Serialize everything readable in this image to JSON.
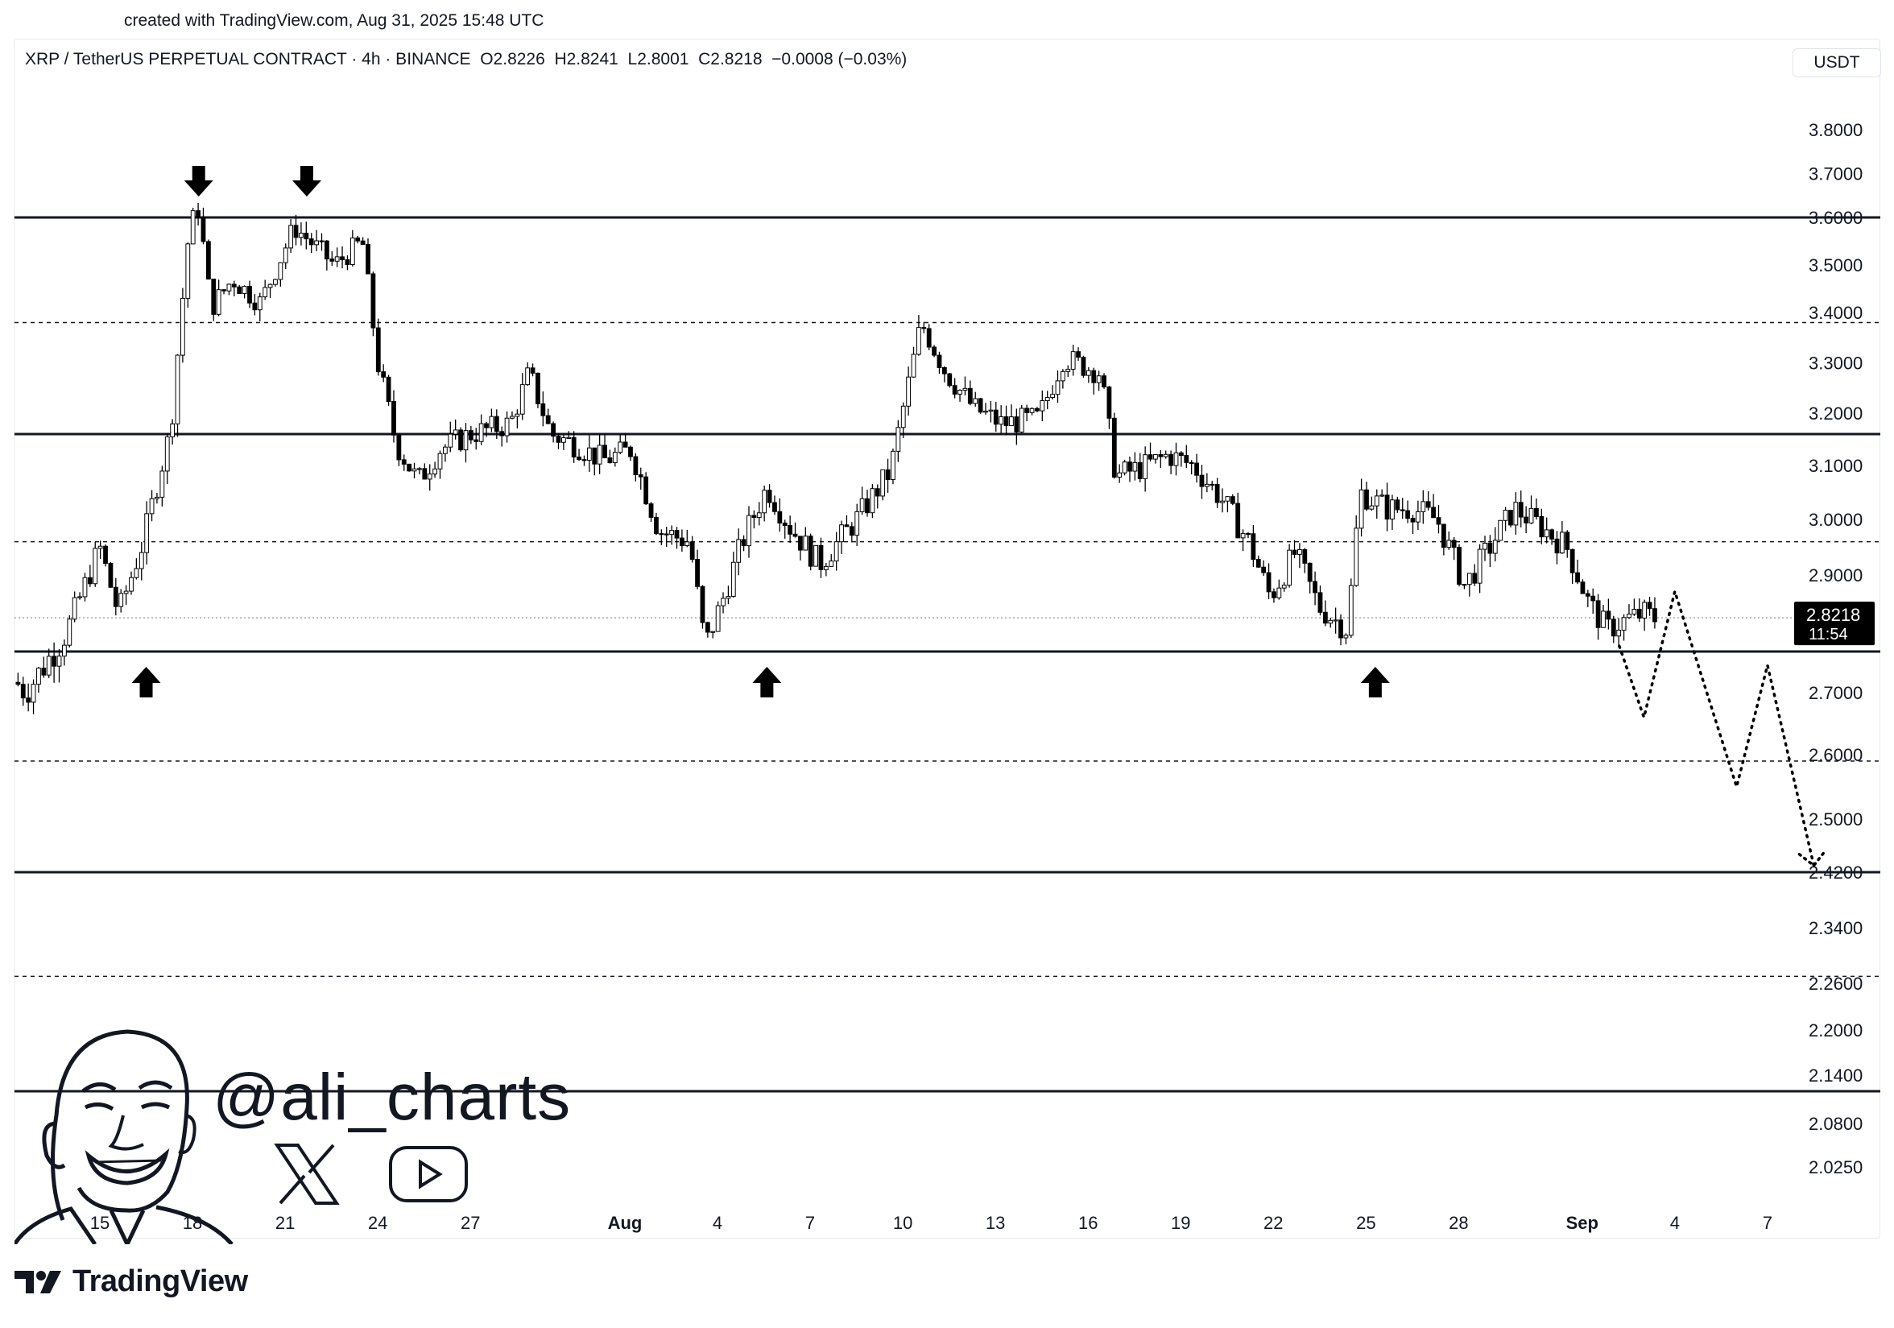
{
  "credit": "created with TradingView.com, Aug 31, 2025 15:48 UTC",
  "header": {
    "symbol": "XRP / TetherUS PERPETUAL CONTRACT · 4h · BINANCE",
    "ohlc": "O2.8226  H2.8241  L2.8001  C2.8218  −0.0008 (−0.03%)"
  },
  "currency": "USDT",
  "brand": "TradingView",
  "watermark": "@ali_charts",
  "icons": [
    "x-logo-icon",
    "youtube-play-icon",
    "tradingview-logo-icon",
    "avatar-caricature"
  ],
  "colors": {
    "candle": "#000000",
    "background": "#ffffff",
    "price_tag": "#000000"
  },
  "chart_data": {
    "type": "candlestick",
    "title": "",
    "xlabel": "",
    "ylabel": "",
    "ylim": [
      1.98,
      3.86
    ],
    "yticks": [
      3.8,
      3.7,
      3.6,
      3.5,
      3.4,
      3.3,
      3.2,
      3.1,
      3.0,
      2.9,
      2.7,
      2.6,
      2.5,
      2.42,
      2.34,
      2.26,
      2.2,
      2.14,
      2.08,
      2.025
    ],
    "ytick_labels": [
      "3.8000",
      "3.7000",
      "3.6000",
      "3.5000",
      "3.4000",
      "3.3000",
      "3.2000",
      "3.1000",
      "3.0000",
      "2.9000",
      "2.7000",
      "2.6000",
      "2.5000",
      "2.4200",
      "2.3400",
      "2.2600",
      "2.2000",
      "2.1400",
      "2.0800",
      "2.0250"
    ],
    "x_ticks": [
      {
        "label": "15",
        "day": 0
      },
      {
        "label": "18",
        "day": 3
      },
      {
        "label": "21",
        "day": 6
      },
      {
        "label": "24",
        "day": 9
      },
      {
        "label": "27",
        "day": 12
      },
      {
        "label": "Aug",
        "day": 17,
        "bold": true
      },
      {
        "label": "4",
        "day": 20
      },
      {
        "label": "7",
        "day": 23
      },
      {
        "label": "10",
        "day": 26
      },
      {
        "label": "13",
        "day": 29
      },
      {
        "label": "16",
        "day": 32
      },
      {
        "label": "19",
        "day": 35
      },
      {
        "label": "22",
        "day": 38
      },
      {
        "label": "25",
        "day": 41
      },
      {
        "label": "28",
        "day": 44
      },
      {
        "label": "Sep",
        "day": 48,
        "bold": true
      },
      {
        "label": "4",
        "day": 51
      },
      {
        "label": "7",
        "day": 54
      }
    ],
    "current_price": {
      "value": 2.8218,
      "label": "2.8218",
      "countdown": "11:54"
    },
    "support_resistance_solid": [
      3.6,
      3.16,
      2.76,
      2.42,
      2.12
    ],
    "support_resistance_dashed": [
      3.38,
      2.96,
      2.59,
      2.27
    ],
    "markers": [
      {
        "type": "down-arrow",
        "day": 3.2
      },
      {
        "type": "down-arrow",
        "day": 6.7
      },
      {
        "type": "up-arrow",
        "day": 1.5
      },
      {
        "type": "up-arrow",
        "day": 21.6
      },
      {
        "type": "up-arrow",
        "day": 41.3
      }
    ],
    "projection": [
      [
        49.2,
        2.77
      ],
      [
        50.0,
        2.66
      ],
      [
        51.0,
        2.87
      ],
      [
        53.0,
        2.55
      ],
      [
        54.0,
        2.74
      ],
      [
        55.5,
        2.43
      ]
    ],
    "anchors": [
      [
        -2.8,
        2.72
      ],
      [
        -2.4,
        2.7
      ],
      [
        -1.2,
        2.78
      ],
      [
        0.0,
        2.95
      ],
      [
        0.6,
        2.83
      ],
      [
        1.4,
        2.96
      ],
      [
        2.3,
        3.17
      ],
      [
        2.9,
        3.58
      ],
      [
        3.2,
        3.62
      ],
      [
        3.6,
        3.41
      ],
      [
        4.3,
        3.47
      ],
      [
        5.2,
        3.42
      ],
      [
        6.3,
        3.58
      ],
      [
        6.8,
        3.55
      ],
      [
        7.6,
        3.5
      ],
      [
        8.5,
        3.55
      ],
      [
        9.0,
        3.3
      ],
      [
        9.6,
        3.14
      ],
      [
        10.3,
        3.07
      ],
      [
        11.0,
        3.13
      ],
      [
        12.0,
        3.16
      ],
      [
        13.3,
        3.18
      ],
      [
        13.9,
        3.28
      ],
      [
        14.6,
        3.16
      ],
      [
        15.4,
        3.14
      ],
      [
        16.3,
        3.11
      ],
      [
        17.2,
        3.13
      ],
      [
        18.1,
        2.98
      ],
      [
        19.1,
        2.96
      ],
      [
        19.6,
        2.77
      ],
      [
        20.2,
        2.86
      ],
      [
        20.8,
        2.96
      ],
      [
        21.6,
        3.06
      ],
      [
        22.3,
        2.99
      ],
      [
        23.3,
        2.92
      ],
      [
        24.5,
        3.0
      ],
      [
        25.6,
        3.09
      ],
      [
        26.6,
        3.38
      ],
      [
        27.4,
        3.28
      ],
      [
        28.3,
        3.21
      ],
      [
        29.2,
        3.18
      ],
      [
        30.4,
        3.19
      ],
      [
        31.2,
        3.31
      ],
      [
        32.4,
        3.28
      ],
      [
        32.9,
        3.08
      ],
      [
        33.9,
        3.1
      ],
      [
        34.6,
        3.12
      ],
      [
        35.4,
        3.1
      ],
      [
        36.3,
        3.04
      ],
      [
        37.2,
        2.96
      ],
      [
        37.9,
        2.86
      ],
      [
        38.7,
        2.94
      ],
      [
        39.5,
        2.84
      ],
      [
        40.4,
        2.8
      ],
      [
        40.8,
        3.05
      ],
      [
        41.7,
        3.02
      ],
      [
        42.5,
        3.02
      ],
      [
        43.3,
        3.0
      ],
      [
        44.2,
        2.88
      ],
      [
        45.0,
        2.95
      ],
      [
        45.8,
        3.02
      ],
      [
        46.6,
        2.99
      ],
      [
        47.5,
        2.95
      ],
      [
        48.2,
        2.85
      ],
      [
        48.8,
        2.8
      ],
      [
        49.5,
        2.82
      ],
      [
        50.0,
        2.83
      ],
      [
        50.4,
        2.82
      ]
    ]
  }
}
